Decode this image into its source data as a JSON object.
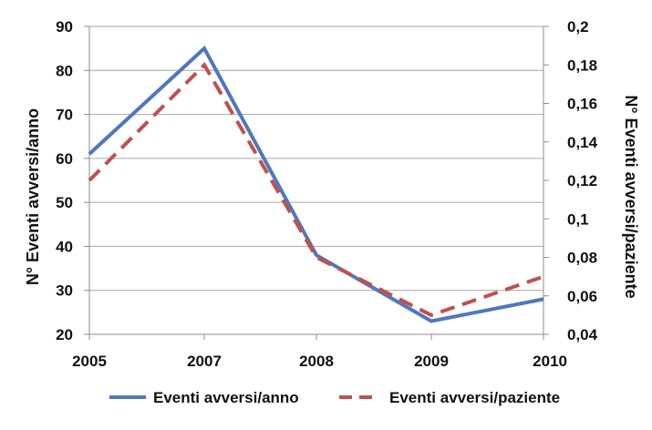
{
  "chart_data": {
    "type": "line",
    "x": [
      "2005",
      "2007",
      "2008",
      "2009",
      "2010"
    ],
    "series": [
      {
        "name": "Eventi avversi/anno",
        "axis": "left",
        "color": "#4f77be",
        "style": "solid",
        "values": [
          61,
          85,
          38,
          23,
          28
        ]
      },
      {
        "name": "Eventi avversi/paziente",
        "axis": "right",
        "color": "#c0504d",
        "style": "dashed",
        "values": [
          0.12,
          0.18,
          0.08,
          0.05,
          0.07
        ]
      }
    ],
    "ylabel": "N° Eventi avversi/anno",
    "y2label": "N° Eventi avversi/paziente",
    "ylim": [
      20,
      90
    ],
    "y2lim": [
      0.04,
      0.2
    ],
    "yticks": [
      "20",
      "30",
      "40",
      "50",
      "60",
      "70",
      "80",
      "90"
    ],
    "y2ticks": [
      "0,04",
      "0,06",
      "0,08",
      "0,1",
      "0,12",
      "0,14",
      "0,16",
      "0,18",
      "0,2"
    ],
    "grid": true,
    "legend": "bottom"
  }
}
